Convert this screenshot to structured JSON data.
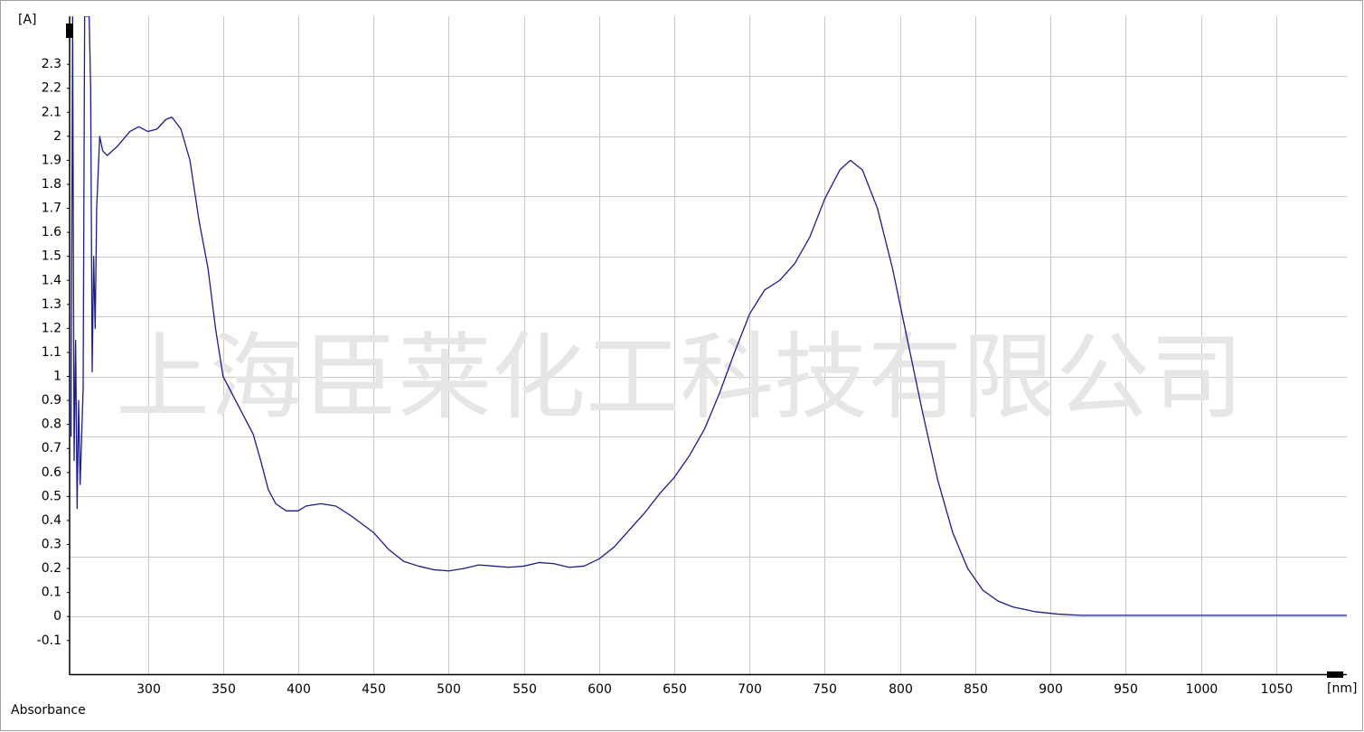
{
  "chart_data": {
    "type": "line",
    "watermark": "上海臣莱化工科技有限公司",
    "y_unit": "[A]",
    "x_unit": "[nm]",
    "y_label": "Absorbance",
    "color": "#1c1c8c",
    "grid": true,
    "xlim": [
      248,
      1097
    ],
    "ylim": [
      -0.24,
      2.5
    ],
    "xticks": [
      300,
      350,
      400,
      450,
      500,
      550,
      600,
      650,
      700,
      750,
      800,
      850,
      900,
      950,
      1000,
      1050
    ],
    "yticks": [
      -0.1,
      0,
      0.1,
      0.2,
      0.3,
      0.4,
      0.5,
      0.6,
      0.7,
      0.8,
      0.9,
      1,
      1.1,
      1.2,
      1.3,
      1.4,
      1.5,
      1.6,
      1.7,
      1.8,
      1.9,
      2,
      2.1,
      2.2,
      2.3
    ],
    "ygrid": [
      0,
      0.25,
      0.5,
      0.75,
      1,
      1.25,
      1.5,
      1.75,
      2,
      2.25
    ],
    "x": [
      249,
      250,
      251,
      252,
      253,
      254,
      255,
      257,
      258,
      261,
      262,
      263,
      264,
      265,
      266,
      268,
      270,
      273,
      280,
      288,
      294,
      300,
      306,
      312,
      316,
      322,
      328,
      334,
      340,
      345,
      350,
      360,
      370,
      375,
      380,
      385,
      392,
      400,
      405,
      415,
      425,
      435,
      450,
      460,
      470,
      480,
      490,
      500,
      510,
      520,
      530,
      540,
      550,
      560,
      570,
      580,
      590,
      600,
      610,
      620,
      630,
      640,
      650,
      660,
      670,
      680,
      690,
      700,
      710,
      720,
      730,
      740,
      750,
      760,
      767,
      775,
      785,
      795,
      805,
      815,
      825,
      835,
      845,
      855,
      865,
      875,
      890,
      905,
      920,
      1000,
      1097
    ],
    "values": [
      0.75,
      2.5,
      0.65,
      1.15,
      0.45,
      0.9,
      0.55,
      0.95,
      2.5,
      2.5,
      2.2,
      1.02,
      1.5,
      1.2,
      1.7,
      2.0,
      1.94,
      1.92,
      1.96,
      2.02,
      2.04,
      2.02,
      2.03,
      2.07,
      2.08,
      2.03,
      1.9,
      1.65,
      1.45,
      1.2,
      1.0,
      0.88,
      0.76,
      0.65,
      0.53,
      0.47,
      0.44,
      0.44,
      0.46,
      0.47,
      0.46,
      0.42,
      0.35,
      0.28,
      0.23,
      0.21,
      0.195,
      0.19,
      0.2,
      0.215,
      0.21,
      0.205,
      0.21,
      0.225,
      0.22,
      0.205,
      0.21,
      0.24,
      0.29,
      0.36,
      0.43,
      0.51,
      0.58,
      0.67,
      0.78,
      0.93,
      1.1,
      1.26,
      1.36,
      1.4,
      1.47,
      1.58,
      1.74,
      1.86,
      1.9,
      1.86,
      1.7,
      1.45,
      1.15,
      0.85,
      0.57,
      0.35,
      0.2,
      0.11,
      0.065,
      0.04,
      0.02,
      0.01,
      0.005,
      0.005,
      0.005
    ]
  }
}
